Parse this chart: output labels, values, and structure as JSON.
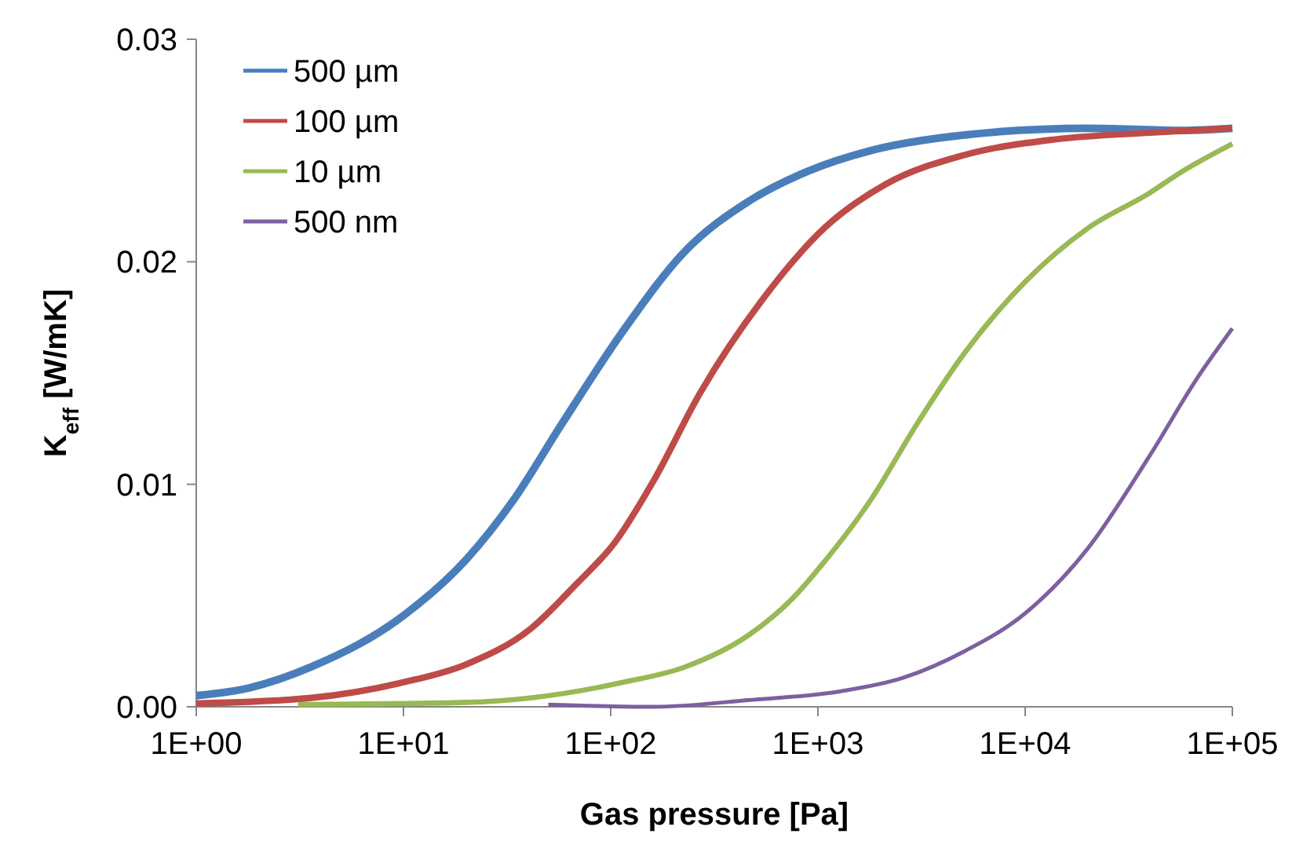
{
  "chart_data": {
    "type": "line",
    "xlabel": "Gas pressure [Pa]",
    "ylabel": "K$_{eff}$ [W/mK]",
    "log": "x",
    "xlim": [
      1,
      100000
    ],
    "ylim": [
      0,
      0.03
    ],
    "xticks": [
      {
        "value": 1,
        "label": "1E+00"
      },
      {
        "value": 10,
        "label": "1E+01"
      },
      {
        "value": 100,
        "label": "1E+02"
      },
      {
        "value": 1000,
        "label": "1E+03"
      },
      {
        "value": 10000,
        "label": "1E+04"
      },
      {
        "value": 100000,
        "label": "1E+05"
      }
    ],
    "yticks": [
      {
        "value": 0,
        "label": "0.00"
      },
      {
        "value": 0.01,
        "label": "0.01"
      },
      {
        "value": 0.02,
        "label": "0.02"
      },
      {
        "value": 0.03,
        "label": "0.03"
      }
    ],
    "grid": false,
    "legend": "top left",
    "marker": "none",
    "line_style": "solid",
    "series": [
      {
        "name": "500 µm",
        "color": "#4a7ebb",
        "x": [
          1,
          1.8,
          3.6,
          10,
          20,
          34,
          58,
          115,
          230,
          460,
          910,
          1800,
          5100,
          20000,
          56000,
          100000
        ],
        "values": [
          0.0005,
          0.00085,
          0.0018,
          0.0041,
          0.0066,
          0.0093,
          0.0127,
          0.0169,
          0.0205,
          0.0227,
          0.0241,
          0.025,
          0.0257,
          0.026,
          0.0259,
          0.026
        ]
      },
      {
        "name": "100 µm",
        "color": "#be4b48",
        "x": [
          1,
          3.6,
          10,
          20,
          41,
          68,
          105,
          162,
          270,
          540,
          1070,
          2140,
          5100,
          14000,
          40000,
          100000
        ],
        "values": [
          0.00015,
          0.0004,
          0.0011,
          0.0019,
          0.0035,
          0.0055,
          0.0074,
          0.0102,
          0.0141,
          0.0183,
          0.0215,
          0.0235,
          0.0248,
          0.0255,
          0.0258,
          0.026
        ]
      },
      {
        "name": "10 µm",
        "color": "#98b954",
        "x": [
          3.1,
          20,
          41,
          115,
          230,
          460,
          760,
          1070,
          1800,
          3000,
          5100,
          10000,
          20000,
          40000,
          56000,
          100000
        ],
        "values": [
          0.0001,
          0.0002,
          0.0004,
          0.0011,
          0.0018,
          0.0032,
          0.0049,
          0.0065,
          0.0093,
          0.0127,
          0.0159,
          0.0191,
          0.0215,
          0.0231,
          0.024,
          0.0253
        ]
      },
      {
        "name": "500 nm",
        "color": "#7d60a0",
        "x": [
          50,
          162,
          460,
          1290,
          2570,
          5100,
          10000,
          20000,
          40000,
          68000,
          100000
        ],
        "values": [
          0.0001,
          0.0,
          0.0003,
          0.0007,
          0.0013,
          0.0025,
          0.0042,
          0.0071,
          0.0113,
          0.0148,
          0.017
        ]
      }
    ]
  }
}
